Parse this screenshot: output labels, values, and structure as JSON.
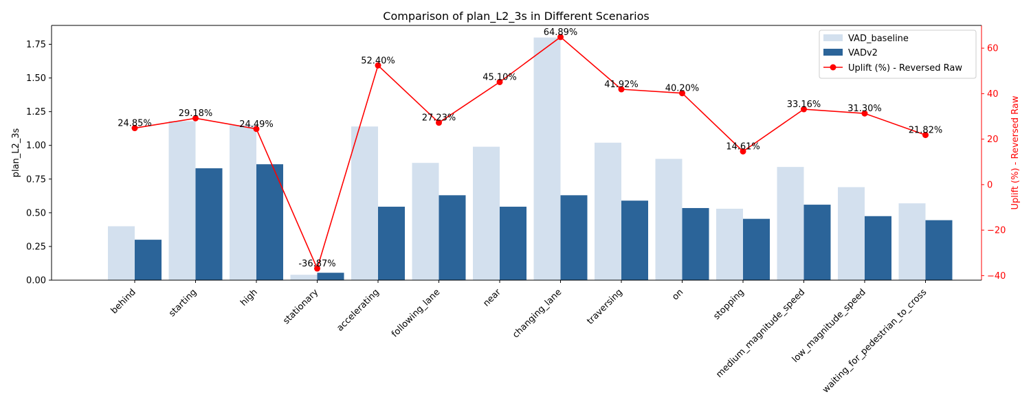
{
  "chart_data": {
    "type": "bar",
    "title": "Comparison of plan_L2_3s in Different Scenarios",
    "xlabel": "",
    "ylabel": "plan_L2_3s",
    "y2label": "Uplift (%) - Reversed Raw",
    "ylim": [
      0,
      1.89
    ],
    "y2lim": [
      -42,
      70
    ],
    "yticks": [
      0.0,
      0.25,
      0.5,
      0.75,
      1.0,
      1.25,
      1.5,
      1.75
    ],
    "ytick_labels": [
      "0.00",
      "0.25",
      "0.50",
      "0.75",
      "1.00",
      "1.25",
      "1.50",
      "1.75"
    ],
    "y2ticks": [
      -40,
      -20,
      0,
      20,
      40,
      60
    ],
    "y2tick_labels": [
      "−40",
      "−20",
      "0",
      "20",
      "40",
      "60"
    ],
    "categories": [
      "behind",
      "starting",
      "high",
      "stationary",
      "accelerating",
      "following_lane",
      "near",
      "changing_lane",
      "traversing",
      "on",
      "stopping",
      "medium_magnitude_speed",
      "low_magnitude_speed",
      "waiting_for_pedestrian_to_cross"
    ],
    "series": [
      {
        "name": "VAD_baseline",
        "kind": "bar",
        "color": "#d3e0ee",
        "values": [
          0.4,
          1.18,
          1.15,
          0.04,
          1.14,
          0.87,
          0.99,
          1.8,
          1.02,
          0.9,
          0.53,
          0.84,
          0.69,
          0.57
        ]
      },
      {
        "name": "VADv2",
        "kind": "bar",
        "color": "#2b6499",
        "values": [
          0.3,
          0.83,
          0.86,
          0.055,
          0.545,
          0.63,
          0.545,
          0.63,
          0.59,
          0.535,
          0.455,
          0.56,
          0.475,
          0.445
        ]
      },
      {
        "name": "Uplift (%) - Reversed Raw",
        "kind": "line",
        "axis": "right",
        "color": "#ff0000",
        "values": [
          24.85,
          29.18,
          24.49,
          -36.87,
          52.4,
          27.23,
          45.1,
          64.89,
          41.92,
          40.2,
          14.61,
          33.16,
          31.3,
          21.82
        ]
      }
    ],
    "data_labels": [
      "24.85%",
      "29.18%",
      "24.49%",
      "-36.87%",
      "52.40%",
      "27.23%",
      "45.10%",
      "64.89%",
      "41.92%",
      "40.20%",
      "14.61%",
      "33.16%",
      "31.30%",
      "21.82%"
    ],
    "legend_position": "upper right",
    "grid": false
  }
}
